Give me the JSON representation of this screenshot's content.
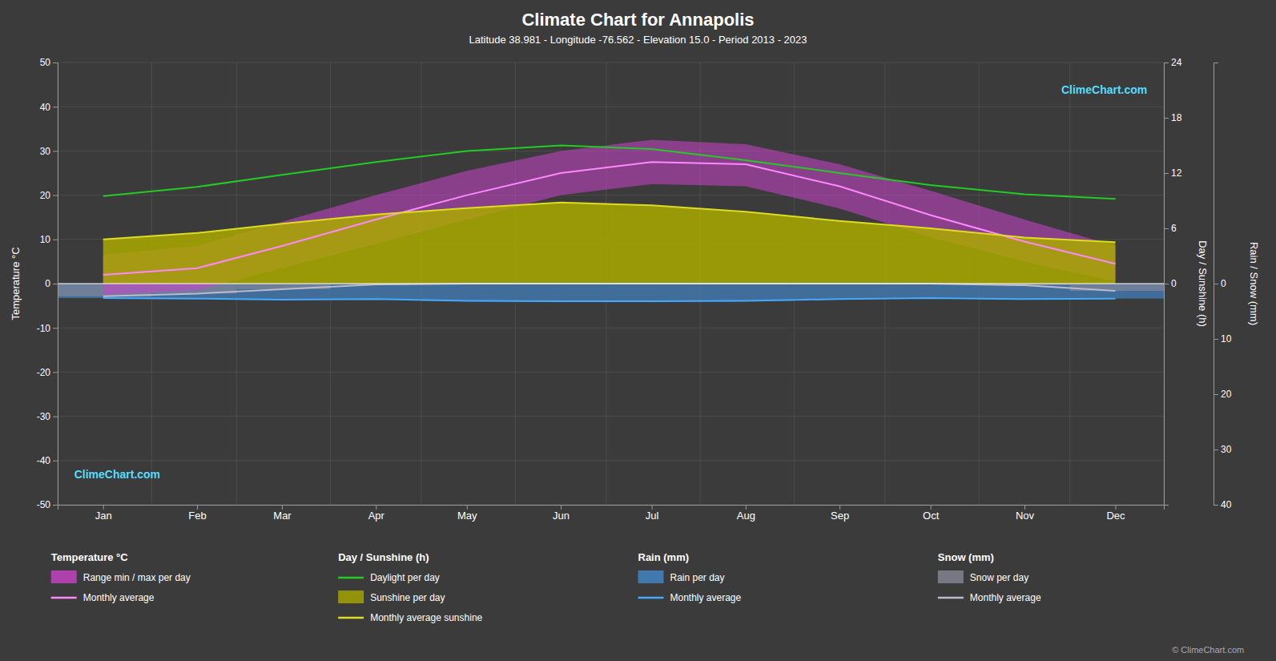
{
  "chart_data": {
    "type": "line",
    "title": "Climate Chart for Annapolis",
    "subtitle": "Latitude 38.981 - Longitude -76.562 - Elevation 15.0 - Period 2013 - 2023",
    "ylabel": "Temperature °C",
    "y2label": "Day / Sunshine (h)",
    "y3label": "Rain / Snow (mm)",
    "x": [
      15,
      46,
      74,
      105,
      135,
      166,
      196,
      227,
      258,
      288,
      319,
      349
    ],
    "month_starts": [
      0,
      31,
      59,
      90,
      120,
      151,
      181,
      212,
      243,
      273,
      304,
      334,
      365
    ],
    "xlim": [
      0,
      365
    ],
    "xticks": [
      {
        "value": 15,
        "label": "Jan"
      },
      {
        "value": 46,
        "label": "Feb"
      },
      {
        "value": 74,
        "label": "Mar"
      },
      {
        "value": 105,
        "label": "Apr"
      },
      {
        "value": 135,
        "label": "May"
      },
      {
        "value": 166,
        "label": "Jun"
      },
      {
        "value": 196,
        "label": "Jul"
      },
      {
        "value": 227,
        "label": "Aug"
      },
      {
        "value": 258,
        "label": "Sep"
      },
      {
        "value": 288,
        "label": "Oct"
      },
      {
        "value": 319,
        "label": "Nov"
      },
      {
        "value": 349,
        "label": "Dec"
      }
    ],
    "ylim": [
      -50,
      50
    ],
    "yticks": [
      -50,
      -40,
      -30,
      -20,
      -10,
      0,
      10,
      20,
      30,
      40,
      50
    ],
    "y2lim": [
      -24,
      24
    ],
    "y2ticks": [
      0,
      6,
      12,
      18,
      24
    ],
    "y3lim": [
      40,
      -40
    ],
    "y3ticks": [
      0,
      10,
      20,
      30,
      40
    ],
    "grid": true,
    "series": [
      {
        "name": "Range min / max per day",
        "group": "Temperature °C",
        "type": "area",
        "color": "#cc44cc",
        "low": [
          -2.5,
          -1.5,
          3.5,
          9.0,
          14.5,
          20.0,
          22.5,
          22.0,
          17.0,
          10.5,
          5.0,
          0.5
        ],
        "values": [
          6.5,
          8.5,
          14.0,
          20.0,
          25.5,
          30.0,
          32.5,
          31.5,
          27.0,
          21.0,
          14.5,
          8.5
        ]
      },
      {
        "name": "Monthly average",
        "group": "Temperature °C",
        "type": "line",
        "color": "#ff88ff",
        "values": [
          2.0,
          3.5,
          8.5,
          14.5,
          20.0,
          25.0,
          27.5,
          27.0,
          22.0,
          15.5,
          9.5,
          4.5
        ]
      },
      {
        "name": "Daylight per day",
        "group": "Day / Sunshine (h)",
        "type": "line",
        "color": "#22cc22",
        "axis": "y2",
        "values": [
          9.5,
          10.5,
          11.8,
          13.2,
          14.4,
          15.0,
          14.6,
          13.4,
          12.0,
          10.7,
          9.7,
          9.2
        ]
      },
      {
        "name": "Sunshine per day",
        "group": "Day / Sunshine (h)",
        "type": "area",
        "color": "#aaaa00",
        "axis": "y2",
        "values": [
          4.8,
          5.5,
          6.5,
          7.5,
          8.2,
          8.8,
          8.5,
          7.8,
          6.8,
          6.0,
          5.0,
          4.5
        ]
      },
      {
        "name": "Monthly average sunshine",
        "group": "Day / Sunshine (h)",
        "type": "line",
        "color": "#dddd22",
        "axis": "y2",
        "values": [
          4.8,
          5.5,
          6.5,
          7.5,
          8.2,
          8.8,
          8.5,
          7.8,
          6.8,
          6.0,
          5.0,
          4.5
        ]
      },
      {
        "name": "Rain per day",
        "group": "Rain (mm)",
        "type": "bar",
        "color": "#4488cc",
        "axis": "y3",
        "values": [
          2.6,
          2.7,
          2.9,
          2.8,
          3.1,
          3.2,
          3.2,
          3.1,
          2.8,
          2.6,
          2.8,
          2.7
        ]
      },
      {
        "name": "Monthly average",
        "group": "Rain (mm)",
        "type": "line",
        "color": "#44aaff",
        "axis": "y3",
        "values": [
          2.6,
          2.7,
          2.9,
          2.8,
          3.1,
          3.2,
          3.2,
          3.1,
          2.8,
          2.6,
          2.8,
          2.7
        ]
      },
      {
        "name": "Snow per day",
        "group": "Snow (mm)",
        "type": "bar",
        "color": "#888899",
        "axis": "y3",
        "values": [
          2.3,
          1.8,
          1.0,
          0.15,
          0,
          0,
          0,
          0,
          0,
          0,
          0.3,
          1.3
        ]
      },
      {
        "name": "Monthly average",
        "group": "Snow (mm)",
        "type": "line",
        "color": "#bbbbcc",
        "axis": "y3",
        "values": [
          2.3,
          1.8,
          1.0,
          0.15,
          0,
          0,
          0,
          0,
          0,
          0,
          0.3,
          1.3
        ]
      }
    ],
    "annotations": [
      "ClimeChart.com",
      "ClimeChart.com",
      "© ClimeChart.com"
    ]
  }
}
